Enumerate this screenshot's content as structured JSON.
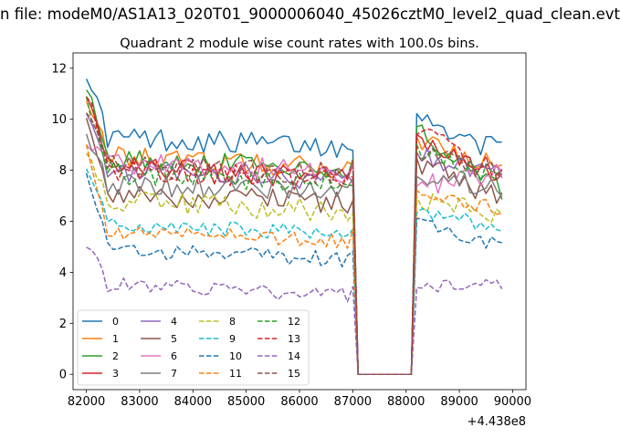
{
  "figure": {
    "suptitle": "n file: modeM0/AS1A13_020T01_9000006040_45026cztM0_level2_quad_clean.evt"
  },
  "chart_data": {
    "type": "line",
    "title": "Quadrant 2 module wise count rates with 100.0s bins.",
    "xlabel": "",
    "ylabel": "",
    "x_offset_label": "+4.438e8",
    "xlim": [
      81750,
      90250
    ],
    "ylim": [
      -0.6,
      12.6
    ],
    "xticks": [
      82000,
      83000,
      84000,
      85000,
      86000,
      87000,
      88000,
      89000,
      90000
    ],
    "yticks": [
      0,
      2,
      4,
      6,
      8,
      10,
      12
    ],
    "grid": false,
    "legend_position": "lower-left",
    "legend_columns": 4,
    "x": [
      82000,
      82100,
      82200,
      82300,
      82400,
      82500,
      82600,
      82700,
      82800,
      82900,
      83000,
      83100,
      83200,
      83300,
      83400,
      83500,
      83600,
      83700,
      83800,
      83900,
      84000,
      84100,
      84200,
      84300,
      84400,
      84500,
      84600,
      84700,
      84800,
      84900,
      85000,
      85100,
      85200,
      85300,
      85400,
      85500,
      85600,
      85700,
      85800,
      85900,
      86000,
      86100,
      86200,
      86300,
      86400,
      86500,
      86600,
      86700,
      86800,
      86900,
      87000,
      87100,
      87200,
      87300,
      87400,
      87500,
      87600,
      87700,
      87800,
      87900,
      88000,
      88100,
      88200,
      88300,
      88400,
      88500,
      88600,
      88700,
      88800,
      88900,
      89000,
      89100,
      89200,
      89300,
      89400,
      89500,
      89600,
      89700,
      89800
    ],
    "series": [
      {
        "name": "0",
        "color": "#1f77b4",
        "dash": "solid",
        "start": 11.8,
        "level": 9.3,
        "end": 8.7
      },
      {
        "name": "1",
        "color": "#ff7f0e",
        "dash": "solid",
        "start": 10.9,
        "level": 8.5,
        "end": 8.2
      },
      {
        "name": "2",
        "color": "#2ca02c",
        "dash": "solid",
        "start": 11.3,
        "level": 8.5,
        "end": 7.2
      },
      {
        "name": "3",
        "color": "#d62728",
        "dash": "solid",
        "start": 11.0,
        "level": 8.1,
        "end": 7.7
      },
      {
        "name": "4",
        "color": "#9467bd",
        "dash": "solid",
        "start": 10.3,
        "level": 8.0,
        "end": 7.9
      },
      {
        "name": "5",
        "color": "#8c564b",
        "dash": "solid",
        "start": 10.1,
        "level": 7.1,
        "end": 6.8
      },
      {
        "name": "6",
        "color": "#e377c2",
        "dash": "solid",
        "start": 9.0,
        "level": 8.3,
        "end": 8.0
      },
      {
        "name": "7",
        "color": "#7f7f7f",
        "dash": "solid",
        "start": 9.4,
        "level": 7.5,
        "end": 7.4
      },
      {
        "name": "8",
        "color": "#bcbd22",
        "dash": "dashed",
        "start": 8.6,
        "level": 6.8,
        "end": 6.2
      },
      {
        "name": "9",
        "color": "#17becf",
        "dash": "dashed",
        "start": 8.0,
        "level": 5.9,
        "end": 5.8
      },
      {
        "name": "10",
        "color": "#1f77b4",
        "dash": "dashed",
        "start": 7.8,
        "level": 4.9,
        "end": 5.0
      },
      {
        "name": "11",
        "color": "#ff7f0e",
        "dash": "dashed",
        "start": 8.9,
        "level": 5.6,
        "end": 6.4
      },
      {
        "name": "12",
        "color": "#2ca02c",
        "dash": "dashed",
        "start": 10.7,
        "level": 7.9,
        "end": 7.6
      },
      {
        "name": "13",
        "color": "#d62728",
        "dash": "dashed",
        "start": 11.1,
        "level": 8.0,
        "end": 8.0
      },
      {
        "name": "14",
        "color": "#9467bd",
        "dash": "dashed",
        "start": 5.1,
        "level": 3.5,
        "end": 3.6
      },
      {
        "name": "15",
        "color": "#8c564b",
        "dash": "dashed",
        "start": 10.4,
        "level": 8.2,
        "end": 7.9
      }
    ]
  }
}
